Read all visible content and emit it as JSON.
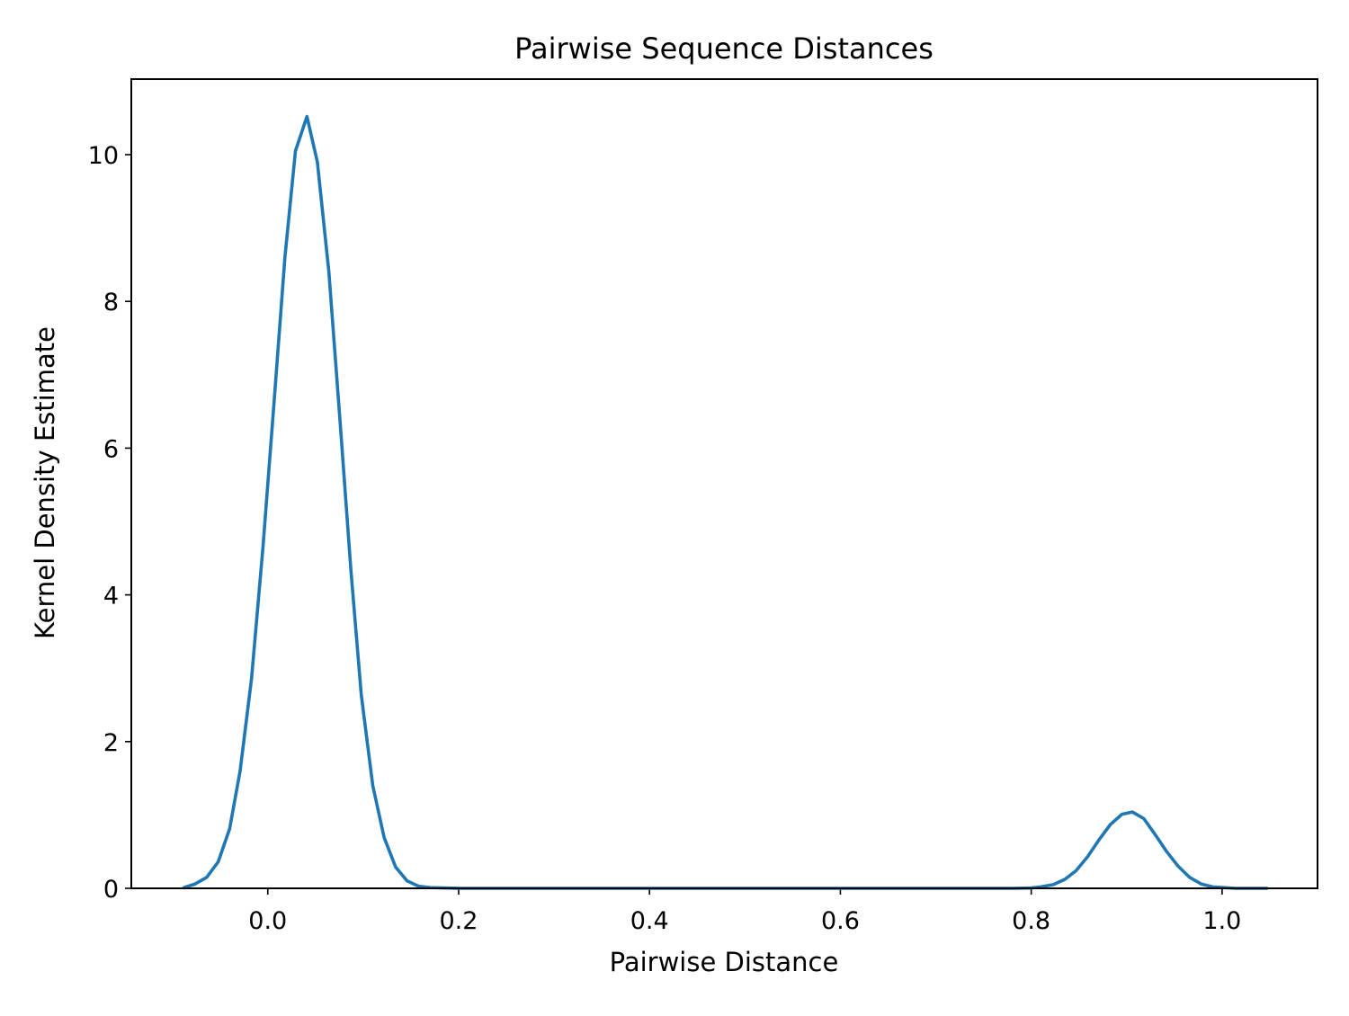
{
  "chart_data": {
    "type": "line",
    "title": "Pairwise Sequence Distances",
    "xlabel": "Pairwise Distance",
    "ylabel": "Kernel Density Estimate",
    "xlim": [
      -0.143,
      1.1
    ],
    "ylim": [
      0,
      11.03
    ],
    "xticks": [
      {
        "value": 0.0,
        "label": "0.0"
      },
      {
        "value": 0.2,
        "label": "0.2"
      },
      {
        "value": 0.4,
        "label": "0.4"
      },
      {
        "value": 0.6,
        "label": "0.6"
      },
      {
        "value": 0.8,
        "label": "0.8"
      },
      {
        "value": 1.0,
        "label": "1.0"
      }
    ],
    "yticks": [
      {
        "value": 0,
        "label": "0"
      },
      {
        "value": 2,
        "label": "2"
      },
      {
        "value": 4,
        "label": "4"
      },
      {
        "value": 6,
        "label": "6"
      },
      {
        "value": 8,
        "label": "8"
      },
      {
        "value": 10,
        "label": "10"
      }
    ],
    "grid": false,
    "series": [
      {
        "color": "#1f77b4",
        "x": [
          -0.088,
          -0.076,
          -0.064,
          -0.052,
          -0.04,
          -0.029,
          -0.017,
          -0.005,
          0.007,
          0.018,
          0.029,
          0.041,
          0.052,
          0.064,
          0.076,
          0.087,
          0.098,
          0.11,
          0.122,
          0.134,
          0.146,
          0.158,
          0.17,
          0.2,
          0.3,
          0.4,
          0.5,
          0.6,
          0.7,
          0.78,
          0.8,
          0.81,
          0.823,
          0.835,
          0.847,
          0.859,
          0.871,
          0.883,
          0.895,
          0.906,
          0.918,
          0.93,
          0.942,
          0.954,
          0.966,
          0.978,
          0.99,
          1.002,
          1.014,
          1.047
        ],
        "y": [
          0.01,
          0.06,
          0.15,
          0.36,
          0.81,
          1.6,
          2.86,
          4.65,
          6.7,
          8.6,
          10.05,
          10.52,
          9.9,
          8.4,
          6.32,
          4.35,
          2.64,
          1.4,
          0.69,
          0.29,
          0.1,
          0.03,
          0.01,
          0.0,
          0.0,
          0.0,
          0.0,
          0.0,
          0.0,
          0.0,
          0.005,
          0.02,
          0.05,
          0.12,
          0.24,
          0.43,
          0.66,
          0.87,
          1.01,
          1.04,
          0.95,
          0.73,
          0.5,
          0.3,
          0.15,
          0.06,
          0.02,
          0.01,
          0.0,
          0.0
        ]
      }
    ]
  }
}
